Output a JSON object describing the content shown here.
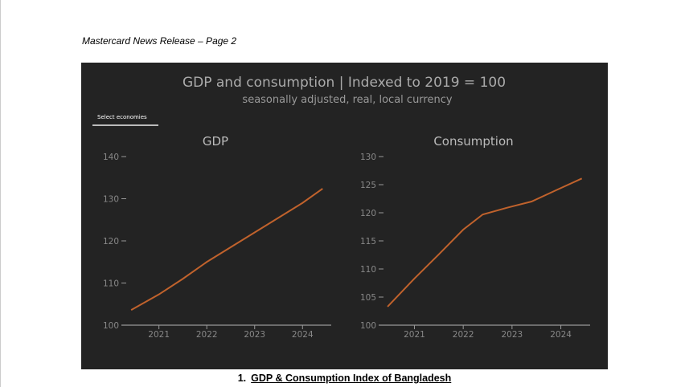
{
  "page_header": "Mastercard News Release – Page 2",
  "caption": {
    "number": "1.",
    "text": "GDP & Consumption Index of Bangladesh"
  },
  "select_button": "Select economies",
  "chart_data": {
    "title": "GDP and consumption | Indexed to 2019 = 100",
    "subtitle": "seasonally adjusted, real, local currency",
    "line_color": "#c0622c",
    "panels": [
      {
        "type": "line",
        "title": "GDP",
        "xlim": [
          2020.3,
          2024.6
        ],
        "ylim": [
          100,
          140
        ],
        "yticks": [
          100,
          110,
          120,
          130,
          140
        ],
        "xticks": [
          2021,
          2022,
          2023,
          2024
        ],
        "x": [
          2020.42,
          2021.0,
          2021.5,
          2022.0,
          2022.5,
          2023.0,
          2023.5,
          2024.0,
          2024.42
        ],
        "y": [
          103.6,
          107.3,
          111,
          115,
          118.5,
          122,
          125.5,
          129,
          132.4
        ]
      },
      {
        "type": "line",
        "title": "Consumption",
        "xlim": [
          2020.35,
          2024.6
        ],
        "ylim": [
          100,
          130
        ],
        "yticks": [
          100,
          105,
          110,
          115,
          120,
          125,
          130
        ],
        "xticks": [
          2021,
          2022,
          2023,
          2024
        ],
        "x": [
          2020.45,
          2021.0,
          2021.5,
          2022.0,
          2022.4,
          2022.9,
          2023.4,
          2023.9,
          2024.43
        ],
        "y": [
          103.3,
          108.3,
          112.6,
          117,
          119.7,
          120.9,
          122,
          124,
          126.1
        ]
      }
    ]
  }
}
